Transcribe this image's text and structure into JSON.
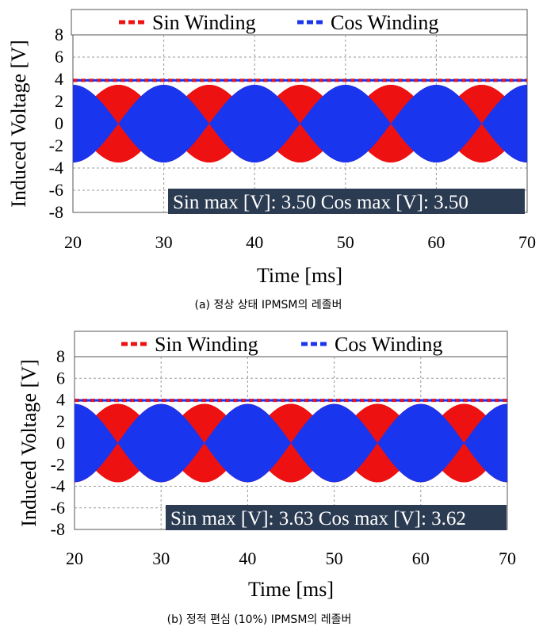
{
  "chart_data": [
    {
      "type": "line",
      "panel_caption": "(a) 정상 상태 IPMSM의 레졸버",
      "xlabel": "Time [ms]",
      "ylabel": "Induced Voltage [V]",
      "xlim": [
        20,
        70
      ],
      "ylim": [
        -8,
        8
      ],
      "xticks": [
        20,
        30,
        40,
        50,
        60,
        70
      ],
      "yticks": [
        8,
        6,
        4,
        2,
        0,
        -2,
        -4,
        -6,
        -8
      ],
      "grid": true,
      "legend_position": "top",
      "envelope_period_ms": 10,
      "series": [
        {
          "name": "Sin Winding",
          "color": "#ee1111",
          "amplitude": 3.5,
          "envelope": "abs-sin",
          "max_line": 3.9
        },
        {
          "name": "Cos Winding",
          "color": "#1a35ee",
          "amplitude": 3.5,
          "envelope": "abs-cos",
          "max_line": 3.9
        }
      ],
      "annotation": "Sin max [V]: 3.50  Cos max [V]: 3.50"
    },
    {
      "type": "line",
      "panel_caption": "(b) 정적 편심 (10%) IPMSM의 레졸버",
      "xlabel": "Time [ms]",
      "ylabel": "Induced Voltage [V]",
      "xlim": [
        20,
        70
      ],
      "ylim": [
        -8,
        8
      ],
      "xticks": [
        20,
        30,
        40,
        50,
        60,
        70
      ],
      "yticks": [
        8,
        6,
        4,
        2,
        0,
        -2,
        -4,
        -6,
        -8
      ],
      "grid": true,
      "legend_position": "top",
      "envelope_period_ms": 10,
      "series": [
        {
          "name": "Sin Winding",
          "color": "#ee1111",
          "amplitude": 3.63,
          "envelope": "abs-sin",
          "max_line": 3.95
        },
        {
          "name": "Cos Winding",
          "color": "#1a35ee",
          "amplitude": 3.62,
          "envelope": "abs-cos",
          "max_line": 3.95
        }
      ],
      "annotation": "Sin max [V]: 3.63  Cos max [V]: 3.62"
    }
  ]
}
